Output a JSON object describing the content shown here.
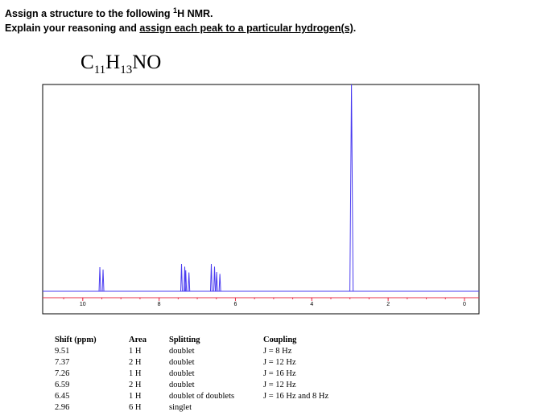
{
  "header": {
    "line1_start": "Assign a structure to the following ",
    "superscript": "1",
    "line1_end": "H NMR.",
    "line2_start": "Explain your reasoning and ",
    "line2_underlined": "assign each peak to a particular hydrogen(s)",
    "line2_end": "."
  },
  "formula": {
    "parts": [
      "C",
      "11",
      "H",
      "13",
      "NO"
    ]
  },
  "spectrum": {
    "xlim": [
      11.05,
      -0.38
    ],
    "xticks": [
      10,
      8,
      6,
      4,
      2,
      0
    ]
  },
  "table": {
    "columns": [
      "Shift (ppm)",
      "Area",
      "Splitting",
      "Coupling"
    ],
    "rows": [
      [
        9.51,
        "1 H",
        "doublet",
        "J = 8 Hz"
      ],
      [
        7.37,
        "2 H",
        "doublet",
        "J = 12 Hz"
      ],
      [
        7.26,
        "1 H",
        "doublet",
        "J = 16 Hz"
      ],
      [
        6.59,
        "2 H",
        "doublet",
        "J = 12 Hz"
      ],
      [
        6.45,
        "1 H",
        "doublet of doublets",
        "J = 16 Hz and 8 Hz"
      ],
      [
        2.96,
        "6 H",
        "singlet",
        ""
      ]
    ]
  }
}
